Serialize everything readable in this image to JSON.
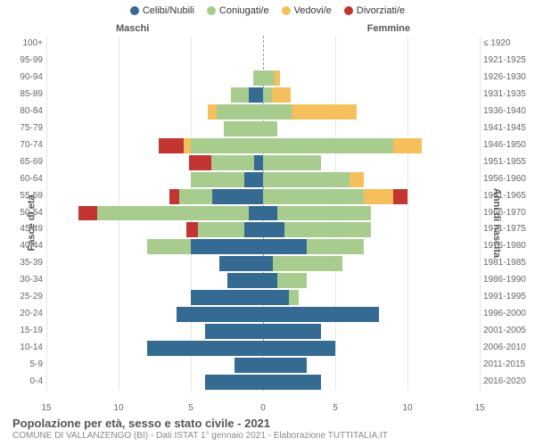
{
  "legend": [
    {
      "label": "Celibi/Nubili",
      "color": "#356a92"
    },
    {
      "label": "Coniugati/e",
      "color": "#a8cc8e"
    },
    {
      "label": "Vedovi/e",
      "color": "#f5c05b"
    },
    {
      "label": "Divorziati/e",
      "color": "#c23531"
    }
  ],
  "colors": {
    "background": "#ffffff",
    "grid": "#e6e6e6",
    "center_dash": "#999999",
    "text": "#555555"
  },
  "top_labels": {
    "left": "Maschi",
    "right": "Femmine"
  },
  "axis_titles": {
    "left": "Fasce di età",
    "right": "Anni di nascita"
  },
  "x_axis": {
    "min": -15,
    "max": 15,
    "ticks": [
      15,
      10,
      5,
      0,
      5,
      10,
      15
    ],
    "tick_positions": [
      -15,
      -10,
      -5,
      0,
      5,
      10,
      15
    ]
  },
  "footer": {
    "title": "Popolazione per età, sesso e stato civile - 2021",
    "subtitle": "COMUNE DI VALLANZENGO (BI) - Dati ISTAT 1° gennaio 2021 - Elaborazione TUTTITALIA.IT"
  },
  "rows": [
    {
      "age": "100+",
      "birth": "≤ 1920",
      "m": {
        "c": 0,
        "g": 0,
        "v": 0,
        "d": 0
      },
      "f": {
        "c": 0,
        "g": 0,
        "v": 0,
        "d": 0
      }
    },
    {
      "age": "95-99",
      "birth": "1921-1925",
      "m": {
        "c": 0,
        "g": 0,
        "v": 0,
        "d": 0
      },
      "f": {
        "c": 0,
        "g": 0,
        "v": 0,
        "d": 0
      }
    },
    {
      "age": "90-94",
      "birth": "1926-1930",
      "m": {
        "c": 0,
        "g": 0.7,
        "v": 0,
        "d": 0
      },
      "f": {
        "c": 0,
        "g": 0.8,
        "v": 0.4,
        "d": 0
      }
    },
    {
      "age": "85-89",
      "birth": "1931-1935",
      "m": {
        "c": 1,
        "g": 1.2,
        "v": 0,
        "d": 0
      },
      "f": {
        "c": 0,
        "g": 0.6,
        "v": 1.3,
        "d": 0
      }
    },
    {
      "age": "80-84",
      "birth": "1936-1940",
      "m": {
        "c": 0,
        "g": 3.2,
        "v": 0.6,
        "d": 0
      },
      "f": {
        "c": 0,
        "g": 2,
        "v": 4.5,
        "d": 0
      }
    },
    {
      "age": "75-79",
      "birth": "1941-1945",
      "m": {
        "c": 0,
        "g": 2.7,
        "v": 0,
        "d": 0
      },
      "f": {
        "c": 0,
        "g": 1,
        "v": 0,
        "d": 0
      }
    },
    {
      "age": "70-74",
      "birth": "1946-1950",
      "m": {
        "c": 0,
        "g": 5,
        "v": 0.5,
        "d": 1.7
      },
      "f": {
        "c": 0,
        "g": 9,
        "v": 2,
        "d": 0
      }
    },
    {
      "age": "65-69",
      "birth": "1951-1955",
      "m": {
        "c": 0.6,
        "g": 3,
        "v": 0,
        "d": 1.5
      },
      "f": {
        "c": 0,
        "g": 4,
        "v": 0,
        "d": 0
      }
    },
    {
      "age": "60-64",
      "birth": "1956-1960",
      "m": {
        "c": 1.3,
        "g": 3.7,
        "v": 0,
        "d": 0
      },
      "f": {
        "c": 0,
        "g": 6,
        "v": 1,
        "d": 0
      }
    },
    {
      "age": "55-59",
      "birth": "1961-1965",
      "m": {
        "c": 3.5,
        "g": 2.3,
        "v": 0,
        "d": 0.7
      },
      "f": {
        "c": 0,
        "g": 7,
        "v": 2,
        "d": 1
      }
    },
    {
      "age": "50-54",
      "birth": "1966-1970",
      "m": {
        "c": 1,
        "g": 10.5,
        "v": 0,
        "d": 1.3
      },
      "f": {
        "c": 1,
        "g": 6.5,
        "v": 0,
        "d": 0
      }
    },
    {
      "age": "45-49",
      "birth": "1971-1975",
      "m": {
        "c": 1.3,
        "g": 3.2,
        "v": 0,
        "d": 0.8
      },
      "f": {
        "c": 1.5,
        "g": 6,
        "v": 0,
        "d": 0
      }
    },
    {
      "age": "40-44",
      "birth": "1976-1980",
      "m": {
        "c": 5,
        "g": 3,
        "v": 0,
        "d": 0
      },
      "f": {
        "c": 3,
        "g": 4,
        "v": 0,
        "d": 0
      }
    },
    {
      "age": "35-39",
      "birth": "1981-1985",
      "m": {
        "c": 3,
        "g": 0,
        "v": 0,
        "d": 0
      },
      "f": {
        "c": 0.7,
        "g": 4.8,
        "v": 0,
        "d": 0
      }
    },
    {
      "age": "30-34",
      "birth": "1986-1990",
      "m": {
        "c": 2.5,
        "g": 0,
        "v": 0,
        "d": 0
      },
      "f": {
        "c": 1,
        "g": 2,
        "v": 0,
        "d": 0
      }
    },
    {
      "age": "25-29",
      "birth": "1991-1995",
      "m": {
        "c": 5,
        "g": 0,
        "v": 0,
        "d": 0
      },
      "f": {
        "c": 1.8,
        "g": 0.7,
        "v": 0,
        "d": 0
      }
    },
    {
      "age": "20-24",
      "birth": "1996-2000",
      "m": {
        "c": 6,
        "g": 0,
        "v": 0,
        "d": 0
      },
      "f": {
        "c": 8,
        "g": 0,
        "v": 0,
        "d": 0
      }
    },
    {
      "age": "15-19",
      "birth": "2001-2005",
      "m": {
        "c": 4,
        "g": 0,
        "v": 0,
        "d": 0
      },
      "f": {
        "c": 4,
        "g": 0,
        "v": 0,
        "d": 0
      }
    },
    {
      "age": "10-14",
      "birth": "2006-2010",
      "m": {
        "c": 8,
        "g": 0,
        "v": 0,
        "d": 0
      },
      "f": {
        "c": 5,
        "g": 0,
        "v": 0,
        "d": 0
      }
    },
    {
      "age": "5-9",
      "birth": "2011-2015",
      "m": {
        "c": 2,
        "g": 0,
        "v": 0,
        "d": 0
      },
      "f": {
        "c": 3,
        "g": 0,
        "v": 0,
        "d": 0
      }
    },
    {
      "age": "0-4",
      "birth": "2016-2020",
      "m": {
        "c": 4,
        "g": 0,
        "v": 0,
        "d": 0
      },
      "f": {
        "c": 4,
        "g": 0,
        "v": 0,
        "d": 0
      }
    }
  ]
}
